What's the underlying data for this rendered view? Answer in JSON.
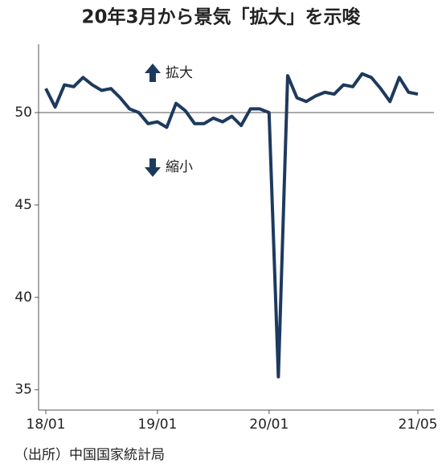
{
  "chart_data": {
    "type": "line",
    "title": "20年3月から景気「拡大」を示唆",
    "source": "（出所）中国国家統計局",
    "annotations": [
      "拡大",
      "縮小"
    ],
    "categories": [
      "18/01",
      null,
      null,
      null,
      null,
      null,
      null,
      null,
      null,
      null,
      null,
      null,
      "19/01",
      null,
      null,
      null,
      null,
      null,
      null,
      null,
      null,
      null,
      null,
      null,
      "20/01",
      null,
      null,
      null,
      null,
      null,
      null,
      null,
      null,
      null,
      null,
      null,
      null,
      null,
      null,
      null,
      "21/05"
    ],
    "values": [
      51.3,
      50.3,
      51.5,
      51.4,
      51.9,
      51.5,
      51.2,
      51.3,
      50.8,
      50.2,
      50.0,
      49.4,
      49.5,
      49.2,
      50.5,
      50.1,
      49.4,
      49.4,
      49.7,
      49.5,
      49.8,
      49.3,
      50.2,
      50.2,
      50.0,
      35.7,
      52.0,
      50.8,
      50.6,
      50.9,
      51.1,
      51.0,
      51.5,
      51.4,
      52.1,
      51.9,
      51.3,
      50.6,
      51.9,
      51.1,
      51.0
    ],
    "color": "#1d3a5e",
    "ylim": [
      33.9,
      53.7
    ],
    "yticks": [
      35,
      40,
      45,
      50
    ],
    "reference_line": 50
  }
}
